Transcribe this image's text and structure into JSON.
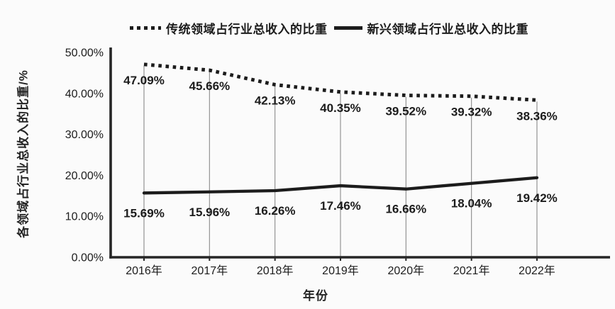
{
  "legend": {
    "items": [
      {
        "label": "传统领域占行业总收入的比重",
        "style": "dotted"
      },
      {
        "label": "新兴领域占行业总收入的比重",
        "style": "solid"
      }
    ]
  },
  "chart_data": {
    "type": "line",
    "title": "",
    "xlabel": "年份",
    "ylabel": "各领域占行业总收入的比重/%",
    "categories": [
      "2016年",
      "2017年",
      "2018年",
      "2019年",
      "2020年",
      "2021年",
      "2022年"
    ],
    "series": [
      {
        "name": "传统领域占行业总收入的比重",
        "line_style": "dotted",
        "values": [
          47.09,
          45.66,
          42.13,
          40.35,
          39.52,
          39.32,
          38.36
        ],
        "labels": [
          "47.09%",
          "45.66%",
          "42.13%",
          "40.35%",
          "39.52%",
          "39.32%",
          "38.36%"
        ]
      },
      {
        "name": "新兴领域占行业总收入的比重",
        "line_style": "solid",
        "values": [
          15.69,
          15.96,
          16.26,
          17.46,
          16.66,
          18.04,
          19.42
        ],
        "labels": [
          "15.69%",
          "15.96%",
          "16.26%",
          "17.46%",
          "16.66%",
          "18.04%",
          "19.42%"
        ]
      }
    ],
    "ylim": [
      0,
      50
    ],
    "y_tick_values": [
      0,
      10,
      20,
      30,
      40,
      50
    ],
    "y_tick_labels": [
      "0.00%",
      "10.00%",
      "20.00%",
      "30.00%",
      "40.00%",
      "50.00%"
    ],
    "grid": "vertical-drop-lines-per-category",
    "legend_position": "top",
    "colors": {
      "series_line": "#1c1c1c",
      "drop_line": "#8a8a8a",
      "axis": "#262626",
      "text": "#1c1c1c",
      "background": "#fbfbfb"
    }
  }
}
